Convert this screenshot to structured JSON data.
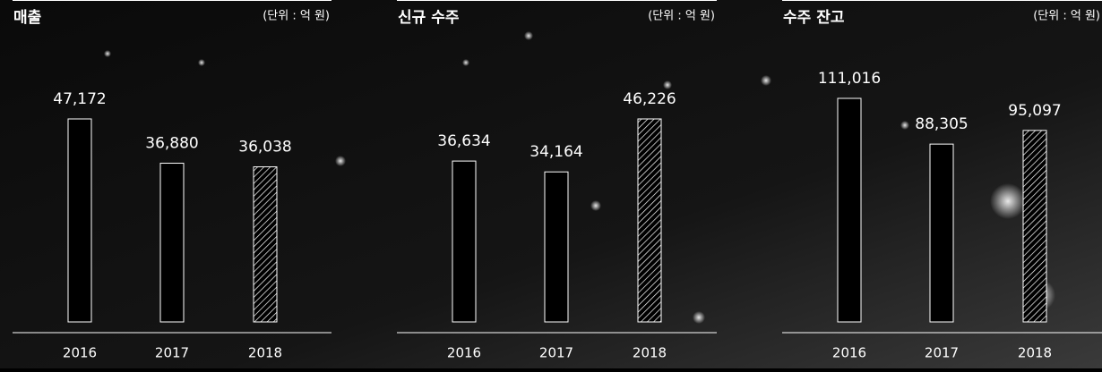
{
  "chart_data": [
    {
      "type": "bar",
      "title": "매출",
      "subtitle": "(단위 : 억 원)",
      "categories": [
        "2016",
        "2017",
        "2018"
      ],
      "values": [
        47172,
        36880,
        36038
      ],
      "value_labels": [
        "47,172",
        "36,880",
        "36,038"
      ],
      "color": "#ffffff"
    },
    {
      "type": "bar",
      "title": "신규 수주",
      "subtitle": "(단위 : 억 원)",
      "categories": [
        "2016",
        "2017",
        "2018"
      ],
      "values": [
        36634,
        34164,
        46226
      ],
      "value_labels": [
        "36,634",
        "34,164",
        "46,226"
      ],
      "color": "#ffffff"
    },
    {
      "type": "bar",
      "title": "수주 잔고",
      "subtitle": "(단위 : 억 원)",
      "categories": [
        "2016",
        "2017",
        "2018"
      ],
      "values": [
        111016,
        88305,
        95097
      ],
      "value_labels": [
        "111,016",
        "88,305",
        "95,097"
      ],
      "color": "#ffffff"
    }
  ]
}
